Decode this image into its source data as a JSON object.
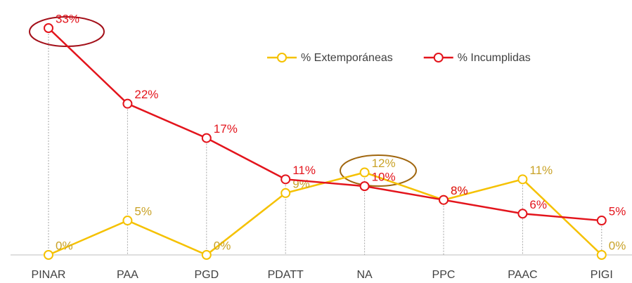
{
  "chart_data": {
    "type": "line",
    "categories": [
      "PINAR",
      "PAA",
      "PGD",
      "PDATT",
      "NA",
      "PPC",
      "PAAC",
      "PIGI"
    ],
    "series": [
      {
        "name": "% Extemporáneas",
        "color": "#f5c100",
        "label_color": "#c9a227",
        "values": [
          0,
          5,
          0,
          9,
          12,
          8,
          11,
          0
        ],
        "value_labels": [
          "0%",
          "5%",
          "0%",
          "9%",
          "12%",
          "8%",
          "11%",
          "0%"
        ]
      },
      {
        "name": "% Incumplidas",
        "color": "#e3141c",
        "label_color": "#e3141c",
        "values": [
          33,
          22,
          17,
          11,
          10,
          8,
          6,
          5
        ],
        "value_labels": [
          "33%",
          "22%",
          "17%",
          "11%",
          "10%",
          "8%",
          "6%",
          "5%"
        ]
      }
    ],
    "legend": "top-right"
  }
}
